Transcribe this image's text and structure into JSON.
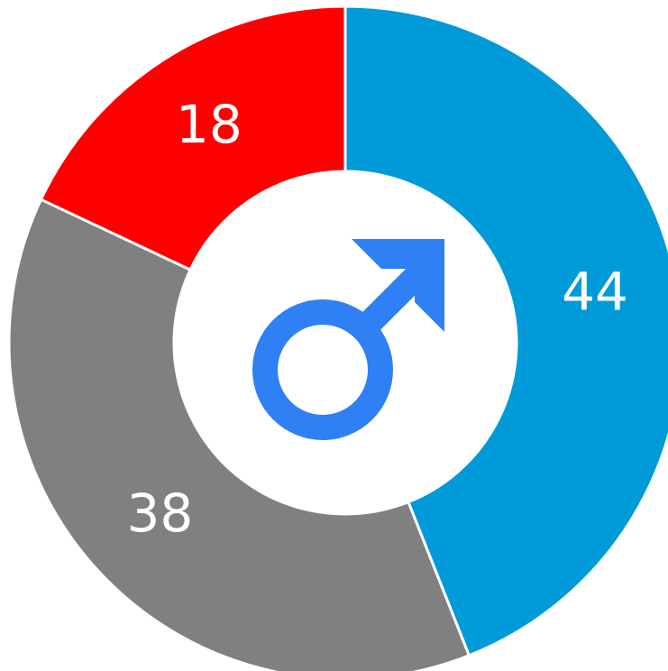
{
  "chart_data": {
    "type": "donut",
    "values": [
      44,
      38,
      18
    ],
    "colors": [
      "#009ad9",
      "#808080",
      "#ff0000"
    ]
  }
}
